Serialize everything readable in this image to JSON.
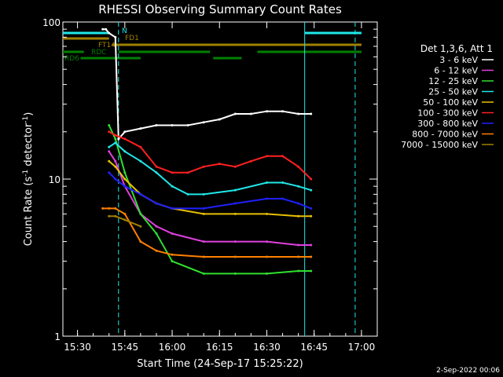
{
  "chart_data": {
    "type": "line",
    "title": "RHESSI Observing Summary Count Rates",
    "xlabel": "Start Time (24-Sep-17 15:25:22)",
    "ylabel_main": "Count Rate (s",
    "ylabel_sup1": "-1",
    "ylabel_mid": " detector",
    "ylabel_sup2": "-1",
    "ylabel_end": ")",
    "yscale": "log",
    "ylim": [
      1,
      100
    ],
    "xlim": [
      "15:25:22",
      "17:05:00"
    ],
    "x_ticks": [
      "15:30",
      "15:45",
      "16:00",
      "16:15",
      "16:30",
      "16:45",
      "17:00"
    ],
    "y_ticks": [
      "1",
      "10",
      "100"
    ],
    "timestamp": "2-Sep-2022 00:06",
    "legend": {
      "header": "Det 1,3,6, Att 1",
      "placement": "right",
      "entries": [
        {
          "label": "3 - 6 keV",
          "color": "#ffffff"
        },
        {
          "label": "6 - 12 keV",
          "color": "#e040e0"
        },
        {
          "label": "12 - 25 keV",
          "color": "#30e030"
        },
        {
          "label": "25 - 50 keV",
          "color": "#20e8e8"
        },
        {
          "label": "50 - 100 keV",
          "color": "#e8c000"
        },
        {
          "label": "100 - 300 keV",
          "color": "#ff2020"
        },
        {
          "label": "300 - 800 keV",
          "color": "#2020ff"
        },
        {
          "label": "800 - 7000 keV",
          "color": "#ff8000"
        },
        {
          "label": "7000 - 15000 keV",
          "color": "#a08000"
        }
      ]
    },
    "flags": [
      {
        "label": "N",
        "color": "#20e8e8"
      },
      {
        "label": "FD1",
        "color": "#a08000"
      },
      {
        "label": "FT14",
        "color": "#a08000"
      },
      {
        "label": "RDC",
        "color": "#008000"
      },
      {
        "label": "RD6",
        "color": "#008000"
      }
    ],
    "series": [
      {
        "name": "3 - 6 keV",
        "color": "#ffffff",
        "x": [
          "15:38",
          "15:39",
          "15:40",
          "15:42",
          "15:43",
          "15:45",
          "15:50",
          "15:55",
          "16:00",
          "16:05",
          "16:10",
          "16:15",
          "16:20",
          "16:25",
          "16:30",
          "16:35",
          "16:40",
          "16:44"
        ],
        "y": [
          90,
          90,
          85,
          80,
          18,
          20,
          21,
          22,
          22,
          22,
          23,
          24,
          26,
          26,
          27,
          27,
          26,
          26
        ]
      },
      {
        "name": "6 - 12 keV",
        "color": "#e040e0",
        "x": [
          "15:40",
          "15:42",
          "15:45",
          "15:50",
          "15:55",
          "16:00",
          "16:10",
          "16:20",
          "16:30",
          "16:40",
          "16:44"
        ],
        "y": [
          15,
          13,
          9,
          6,
          5,
          4.5,
          4,
          4,
          4,
          3.8,
          3.8
        ]
      },
      {
        "name": "12 - 25 keV",
        "color": "#30e030",
        "x": [
          "15:40",
          "15:42",
          "15:45",
          "15:50",
          "15:55",
          "16:00",
          "16:10",
          "16:20",
          "16:30",
          "16:40",
          "16:44"
        ],
        "y": [
          22,
          18,
          11,
          6,
          4.5,
          3,
          2.5,
          2.5,
          2.5,
          2.6,
          2.6
        ]
      },
      {
        "name": "25 - 50 keV",
        "color": "#20e8e8",
        "x": [
          "15:40",
          "15:42",
          "15:45",
          "15:50",
          "15:55",
          "16:00",
          "16:05",
          "16:10",
          "16:20",
          "16:30",
          "16:35",
          "16:40",
          "16:44"
        ],
        "y": [
          16,
          17,
          15,
          13,
          11,
          9,
          8,
          8,
          8.5,
          9.5,
          9.5,
          9,
          8.5
        ]
      },
      {
        "name": "50 - 100 keV",
        "color": "#e8c000",
        "x": [
          "15:40",
          "15:42",
          "15:45",
          "15:50",
          "15:55",
          "16:00",
          "16:10",
          "16:20",
          "16:30",
          "16:40",
          "16:44"
        ],
        "y": [
          13,
          12,
          10,
          8,
          7,
          6.5,
          6,
          6,
          6,
          5.8,
          5.8
        ]
      },
      {
        "name": "100 - 300 keV",
        "color": "#ff2020",
        "x": [
          "15:40",
          "15:42",
          "15:45",
          "15:50",
          "15:55",
          "16:00",
          "16:05",
          "16:10",
          "16:15",
          "16:20",
          "16:25",
          "16:30",
          "16:35",
          "16:40",
          "16:44"
        ],
        "y": [
          20,
          19,
          18,
          16,
          12,
          11,
          11,
          12,
          12.5,
          12,
          13,
          14,
          14,
          12,
          10
        ]
      },
      {
        "name": "300 - 800 keV",
        "color": "#2020ff",
        "x": [
          "15:40",
          "15:42",
          "15:45",
          "15:50",
          "15:55",
          "16:00",
          "16:10",
          "16:20",
          "16:30",
          "16:35",
          "16:40",
          "16:44"
        ],
        "y": [
          11,
          10,
          9,
          8,
          7,
          6.5,
          6.5,
          7,
          7.5,
          7.5,
          7,
          6.5
        ]
      },
      {
        "name": "800 - 7000 keV",
        "color": "#ff8000",
        "x": [
          "15:38",
          "15:40",
          "15:42",
          "15:45",
          "15:50",
          "15:55",
          "16:00",
          "16:10",
          "16:20",
          "16:30",
          "16:40",
          "16:44"
        ],
        "y": [
          6.5,
          6.5,
          6.5,
          6,
          4,
          3.5,
          3.3,
          3.2,
          3.2,
          3.2,
          3.2,
          3.2
        ]
      },
      {
        "name": "7000 - 15000 keV",
        "color": "#a08000",
        "x": [
          "15:40",
          "15:42",
          "15:45",
          "15:50"
        ],
        "y": [
          5.8,
          5.8,
          5.5,
          5.0
        ]
      }
    ]
  }
}
